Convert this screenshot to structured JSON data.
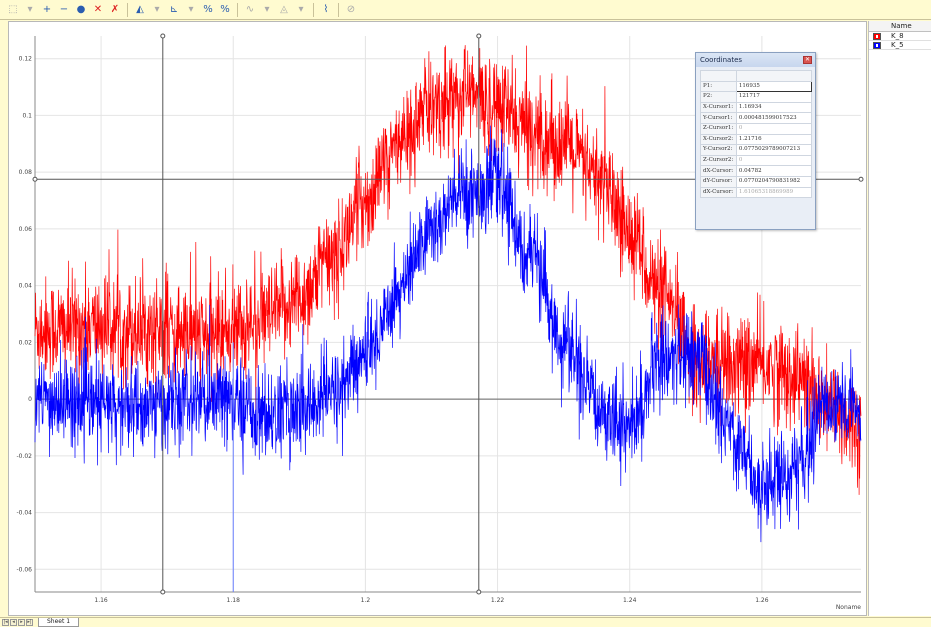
{
  "toolbar": {
    "buttons": [
      {
        "name": "select-tool-icon",
        "glyph": "⬚",
        "color": "gray"
      },
      {
        "name": "dropdown-icon",
        "glyph": "▾",
        "color": "gray"
      },
      {
        "name": "add-icon",
        "glyph": "+",
        "color": "blue"
      },
      {
        "name": "subtract-icon",
        "glyph": "−",
        "color": "blue"
      },
      {
        "name": "circle-icon",
        "glyph": "●",
        "color": "blue"
      },
      {
        "name": "delete-icon",
        "glyph": "✕",
        "color": "red"
      },
      {
        "name": "pin-icon",
        "glyph": "✗",
        "color": "red"
      },
      {
        "name": "sep"
      },
      {
        "name": "peak-icon",
        "glyph": "◭",
        "color": "blue"
      },
      {
        "name": "dropdown-icon",
        "glyph": "▾",
        "color": "gray"
      },
      {
        "name": "baseline-icon",
        "glyph": "⊾",
        "color": "blue"
      },
      {
        "name": "dropdown-icon",
        "glyph": "▾",
        "color": "gray"
      },
      {
        "name": "percent-icon",
        "glyph": "%",
        "color": "blue"
      },
      {
        "name": "percent-alt-icon",
        "glyph": "%",
        "color": "blue"
      },
      {
        "name": "sep"
      },
      {
        "name": "smooth-icon",
        "glyph": "∿",
        "color": "gray"
      },
      {
        "name": "dropdown-icon",
        "glyph": "▾",
        "color": "gray"
      },
      {
        "name": "area-icon",
        "glyph": "◬",
        "color": "gray"
      },
      {
        "name": "dropdown-icon",
        "glyph": "▾",
        "color": "gray"
      },
      {
        "name": "sep"
      },
      {
        "name": "curve-icon",
        "glyph": "⌇",
        "color": "blue"
      },
      {
        "name": "sep"
      },
      {
        "name": "eraser-icon",
        "glyph": "⊘",
        "color": "gray"
      }
    ]
  },
  "legend": {
    "header": "Name",
    "entries": [
      {
        "name": "K_8",
        "color": "#ff0000"
      },
      {
        "name": "K_5",
        "color": "#0000ff"
      }
    ]
  },
  "coordinates": {
    "title": "Coordinates",
    "rows": [
      {
        "key": "P1:",
        "value": "116935",
        "style": "edit"
      },
      {
        "key": "P2:",
        "value": "121717",
        "style": ""
      },
      {
        "key": "X-Cursor1:",
        "value": "1.16934",
        "style": ""
      },
      {
        "key": "Y-Cursor1:",
        "value": "0.000481599017523",
        "style": ""
      },
      {
        "key": "Z-Cursor1:",
        "value": "0",
        "style": "dim"
      },
      {
        "key": "X-Cursor2:",
        "value": "1.21716",
        "style": ""
      },
      {
        "key": "Y-Cursor2:",
        "value": "0.0775029789007213",
        "style": ""
      },
      {
        "key": "Z-Cursor2:",
        "value": "0",
        "style": "dim"
      },
      {
        "key": "dX-Cursor:",
        "value": "0.04782",
        "style": ""
      },
      {
        "key": "dY-Cursor:",
        "value": "0.0770204790831982",
        "style": ""
      },
      {
        "key": "dX-Cursor:",
        "value": "1.61065318869989",
        "style": "dim"
      }
    ]
  },
  "footer": {
    "sheet_tab": "Sheet 1"
  },
  "chart_data": {
    "type": "line",
    "xlabel": "Noname",
    "xlim": [
      1.15,
      1.275
    ],
    "ylim": [
      -0.068,
      0.128
    ],
    "xticks": [
      1.16,
      1.18,
      1.2,
      1.22,
      1.24,
      1.26
    ],
    "xtick_labels": [
      "1.16",
      "1.18",
      "1.2",
      "1.22",
      "1.24",
      "1.26"
    ],
    "yticks": [
      -0.06,
      -0.04,
      -0.02,
      0,
      0.02,
      0.04,
      0.06,
      0.08,
      0.1,
      0.12
    ],
    "ytick_labels": [
      "-0.06",
      "-0.04",
      "-0.02",
      "0",
      "0.02",
      "0.04",
      "0.06",
      "0.08",
      "0.1",
      "0.12"
    ],
    "grid": true,
    "cursors": {
      "x1": 1.16934,
      "x2": 1.21716,
      "y_h": 0.0775
    },
    "series": [
      {
        "name": "K_8",
        "color": "#ff0000",
        "noise": 0.009,
        "x": [
          1.15,
          1.155,
          1.16,
          1.165,
          1.17,
          1.175,
          1.18,
          1.185,
          1.19,
          1.195,
          1.2,
          1.205,
          1.21,
          1.215,
          1.22,
          1.225,
          1.23,
          1.235,
          1.24,
          1.245,
          1.25,
          1.255,
          1.26,
          1.265,
          1.27,
          1.275
        ],
        "y": [
          0.025,
          0.025,
          0.026,
          0.025,
          0.024,
          0.022,
          0.025,
          0.028,
          0.036,
          0.05,
          0.07,
          0.09,
          0.103,
          0.108,
          0.103,
          0.095,
          0.09,
          0.078,
          0.06,
          0.035,
          0.015,
          0.012,
          0.012,
          0.008,
          -0.003,
          -0.01
        ]
      },
      {
        "name": "K_5",
        "color": "#0000ff",
        "noise": 0.008,
        "x": [
          1.15,
          1.155,
          1.16,
          1.165,
          1.17,
          1.175,
          1.18,
          1.185,
          1.19,
          1.195,
          1.2,
          1.205,
          1.21,
          1.215,
          1.22,
          1.225,
          1.23,
          1.235,
          1.24,
          1.245,
          1.25,
          1.255,
          1.26,
          1.265,
          1.27,
          1.275
        ],
        "y": [
          -0.001,
          -0.001,
          -0.002,
          -0.003,
          -0.002,
          0.0,
          -0.001,
          -0.006,
          -0.004,
          0.002,
          0.015,
          0.038,
          0.06,
          0.073,
          0.076,
          0.05,
          0.02,
          -0.002,
          -0.01,
          0.015,
          0.015,
          -0.01,
          -0.03,
          -0.025,
          0.0,
          -0.005
        ]
      }
    ]
  }
}
